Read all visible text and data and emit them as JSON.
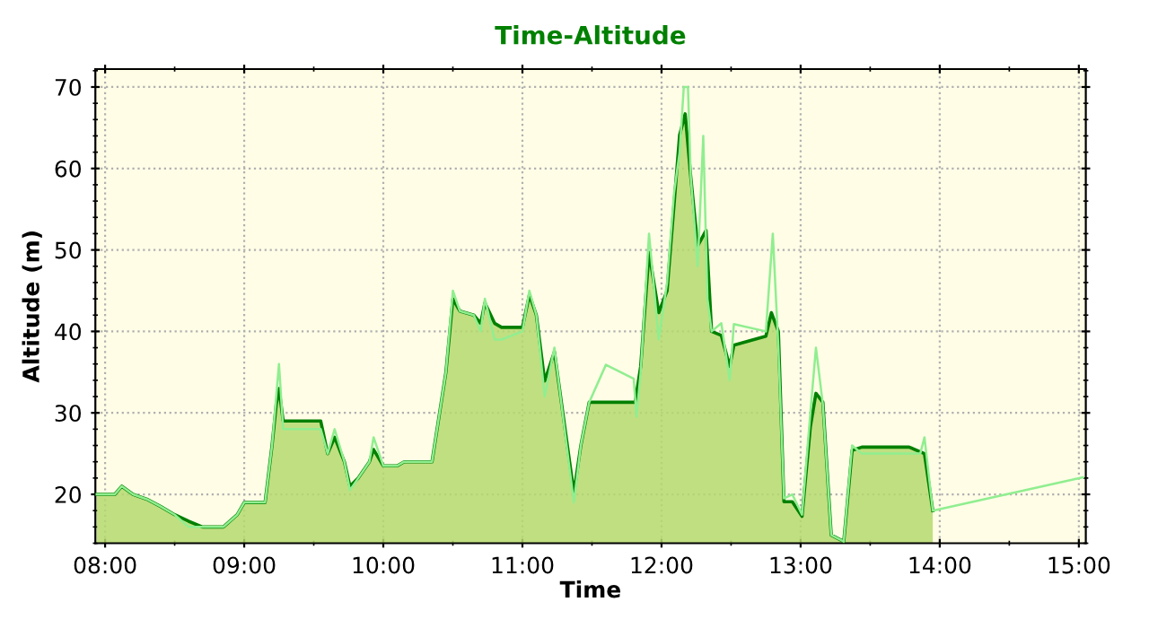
{
  "chart_data": {
    "type": "area",
    "title": "Time-Altitude",
    "xlabel": "Time",
    "ylabel": "Altitude (m)",
    "xlim": [
      7.93,
      15.05
    ],
    "ylim": [
      14,
      72.2
    ],
    "xticks": [
      {
        "value": 8,
        "label": "08:00"
      },
      {
        "value": 9,
        "label": "09:00"
      },
      {
        "value": 10,
        "label": "10:00"
      },
      {
        "value": 11,
        "label": "11:00"
      },
      {
        "value": 12,
        "label": "12:00"
      },
      {
        "value": 13,
        "label": "13:00"
      },
      {
        "value": 14,
        "label": "14:00"
      },
      {
        "value": 15,
        "label": "15:00"
      }
    ],
    "yticks": [
      20,
      30,
      40,
      50,
      60,
      70
    ],
    "grid": true,
    "marker": "none",
    "line_style": "solid",
    "series": [
      {
        "color": "#008000",
        "x": [
          7.94,
          8.07,
          8.12,
          8.2,
          8.3,
          8.4,
          8.5,
          8.6,
          8.7,
          8.85,
          8.95,
          9.0,
          9.15,
          9.2,
          9.23,
          9.25,
          9.28,
          9.55,
          9.6,
          9.65,
          9.72,
          9.76,
          9.82,
          9.9,
          9.93,
          10.0,
          10.1,
          10.15,
          10.35,
          10.45,
          10.5,
          10.55,
          10.65,
          10.7,
          10.73,
          10.8,
          10.85,
          11.0,
          11.05,
          11.1,
          11.16,
          11.23,
          11.31,
          11.37,
          11.42,
          11.48,
          11.81,
          11.85,
          11.91,
          11.98,
          12.04,
          12.09,
          12.13,
          12.17,
          12.21,
          12.26,
          12.32,
          12.36,
          12.43,
          12.49,
          12.52,
          12.75,
          12.79,
          12.84,
          12.88,
          12.94,
          13.01,
          13.07,
          13.11,
          13.16,
          13.22,
          13.31,
          13.37,
          13.44,
          13.78,
          13.89,
          13.95
        ],
        "values": [
          20,
          20,
          21,
          20,
          19.4,
          18.5,
          17.5,
          16.7,
          16,
          16,
          17.5,
          19,
          19,
          26,
          31,
          33,
          29,
          29,
          25,
          27,
          24,
          21,
          22,
          24,
          25.5,
          23.5,
          23.5,
          24,
          24,
          35,
          44,
          42.5,
          42,
          41,
          43.5,
          41,
          40.5,
          40.5,
          44.5,
          42,
          33.9,
          37.5,
          27.6,
          20.2,
          26,
          31.3,
          31.3,
          35.7,
          49.7,
          42.3,
          45,
          55.6,
          64.1,
          66.7,
          59,
          50.5,
          52.4,
          40,
          39.5,
          35.7,
          38.3,
          39.4,
          42.3,
          40,
          19.1,
          19.1,
          17.3,
          28.3,
          32.4,
          31.3,
          15,
          14.2,
          25.4,
          25.8,
          25.8,
          25,
          18
        ]
      },
      {
        "type": "line",
        "color": "#90ee90",
        "x": [
          7.94,
          8.07,
          8.12,
          8.2,
          8.3,
          8.4,
          8.5,
          8.6,
          8.7,
          8.85,
          8.95,
          9.0,
          9.15,
          9.2,
          9.25,
          9.28,
          9.55,
          9.6,
          9.65,
          9.72,
          9.76,
          9.82,
          9.9,
          9.93,
          10.0,
          10.1,
          10.15,
          10.35,
          10.45,
          10.5,
          10.55,
          10.65,
          10.7,
          10.73,
          10.8,
          10.85,
          11.0,
          11.05,
          11.1,
          11.16,
          11.23,
          11.31,
          11.37,
          11.42,
          11.48,
          11.6,
          11.8,
          11.82,
          11.85,
          11.91,
          11.98,
          12.04,
          12.09,
          12.13,
          12.16,
          12.19,
          12.21,
          12.26,
          12.3,
          12.33,
          12.36,
          12.43,
          12.49,
          12.52,
          12.75,
          12.8,
          12.84,
          12.88,
          12.94,
          13.01,
          13.07,
          13.11,
          13.16,
          13.22,
          13.31,
          13.37,
          13.44,
          13.78,
          13.86,
          13.89,
          13.95,
          15.03
        ],
        "values": [
          20,
          20,
          21,
          20,
          19.4,
          18.5,
          17.5,
          16,
          16,
          16,
          17.5,
          19,
          19,
          26,
          36,
          28,
          28,
          25,
          28,
          24,
          20.5,
          22,
          24,
          27,
          23.5,
          23.5,
          24,
          24,
          35,
          45,
          42.5,
          42,
          40,
          44,
          39,
          39,
          40,
          45,
          42,
          32,
          38,
          27,
          19,
          26,
          31.3,
          35.9,
          34.2,
          29.5,
          35,
          52,
          39,
          46,
          57,
          62,
          70,
          70,
          59,
          48,
          64,
          44,
          40,
          41,
          34,
          40.9,
          40,
          52,
          38,
          19.5,
          20,
          17.5,
          30,
          38,
          31,
          15,
          14.2,
          26,
          25,
          25,
          25,
          27,
          18,
          22.1
        ]
      }
    ]
  }
}
